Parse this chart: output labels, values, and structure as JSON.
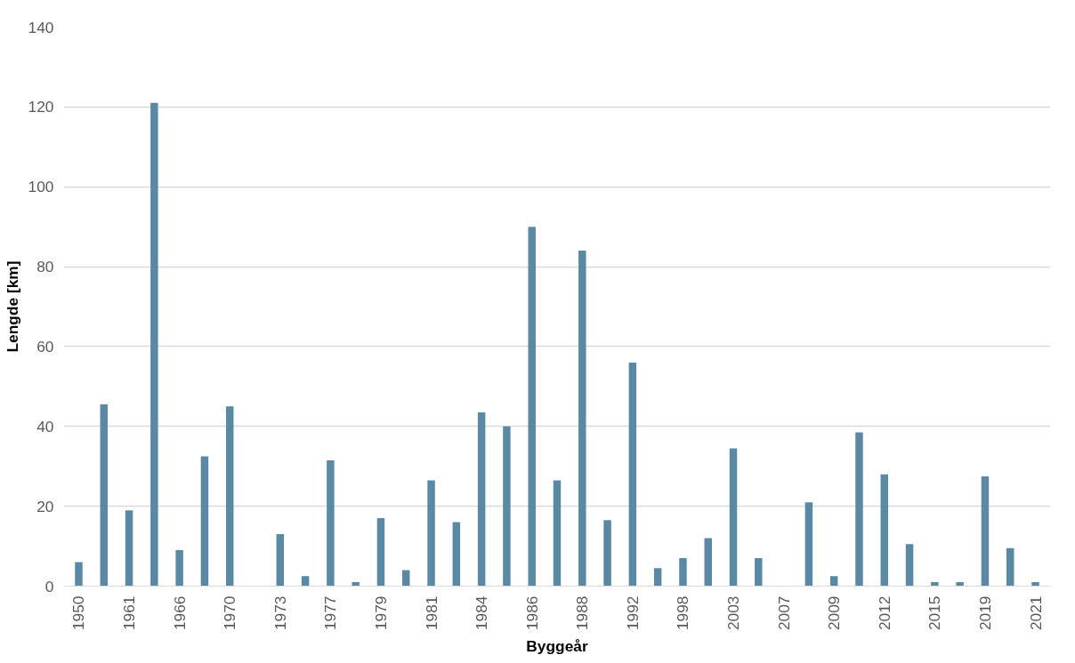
{
  "chart_data": {
    "type": "bar",
    "xlabel": "Byggeår",
    "ylabel": "Lengde [km]",
    "categories": [
      "1950",
      null,
      "1961",
      null,
      "1966",
      null,
      "1970",
      null,
      "1973",
      null,
      "1977",
      null,
      "1979",
      null,
      "1981",
      null,
      "1984",
      null,
      "1986",
      null,
      "1988",
      null,
      "1992",
      null,
      "1998",
      null,
      "2003",
      null,
      "2007",
      null,
      "2009",
      null,
      "2012",
      null,
      "2015",
      null,
      "2019",
      null,
      "2021"
    ],
    "values": [
      6,
      45.5,
      19,
      121,
      9,
      32.5,
      45,
      0,
      13,
      2.5,
      31.5,
      1,
      17,
      4,
      26.5,
      16,
      43.5,
      40,
      90,
      26.5,
      84,
      16.5,
      56,
      4.5,
      7,
      12,
      34.5,
      7,
      0,
      21,
      2.5,
      38.5,
      28,
      10.5,
      1,
      1,
      27.5,
      9.5,
      1
    ],
    "color": "#5a8aa3",
    "ylim": [
      0,
      140
    ],
    "yticks": [
      0,
      20,
      40,
      60,
      80,
      100,
      120,
      140
    ],
    "grid": "y"
  }
}
